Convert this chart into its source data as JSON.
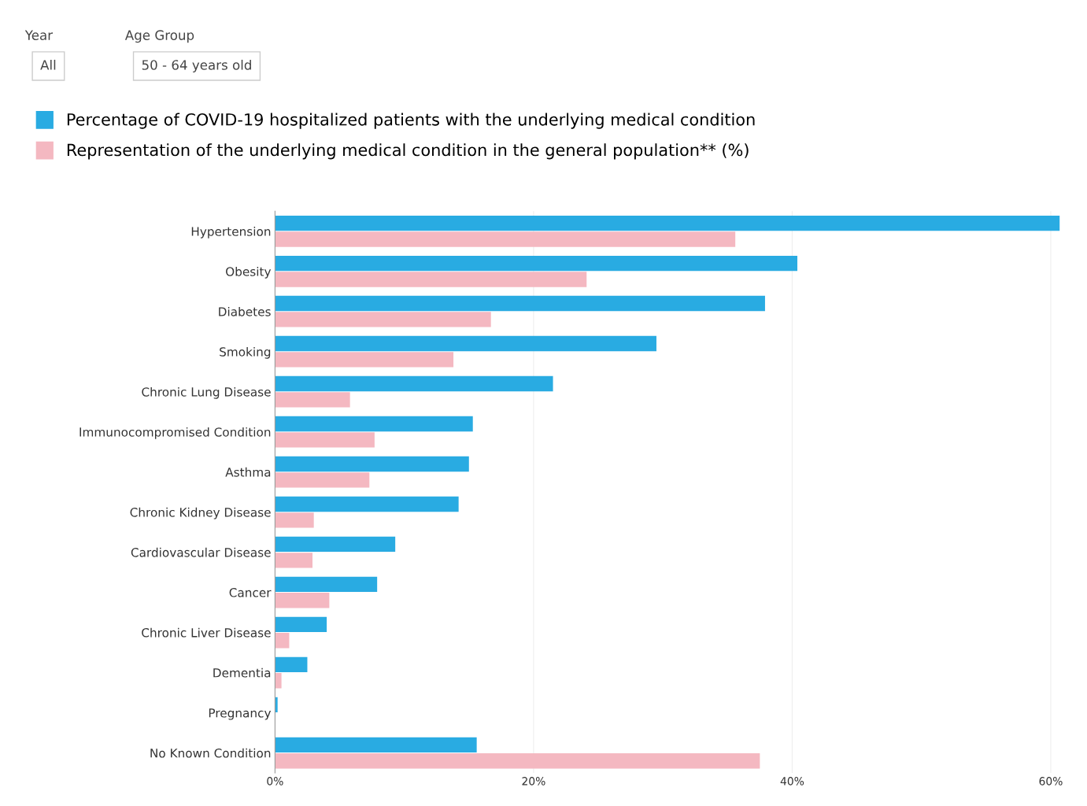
{
  "chart_data": {
    "type": "bar",
    "orientation": "horizontal",
    "categories": [
      "Hypertension",
      "Obesity",
      "Diabetes",
      "Smoking",
      "Chronic Lung Disease",
      "Immunocompromised Condition",
      "Asthma",
      "Chronic Kidney Disease",
      "Cardiovascular Disease",
      "Cancer",
      "Chronic Liver Disease",
      "Dementia",
      "Pregnancy",
      "No Known Condition"
    ],
    "series": [
      {
        "name": "Percentage of COVID-19 hospitalized patients with the underlying medical condition",
        "color": "#29abe2",
        "values": [
          60.7,
          40.4,
          37.9,
          29.5,
          21.5,
          15.3,
          15.0,
          14.2,
          9.3,
          7.9,
          4.0,
          2.5,
          0.2,
          15.6
        ]
      },
      {
        "name": "Representation of the underlying medical condition in the general population** (%)",
        "color": "#f4b8c1",
        "values": [
          35.6,
          24.1,
          16.7,
          13.8,
          5.8,
          7.7,
          7.3,
          3.0,
          2.9,
          4.2,
          1.1,
          0.5,
          null,
          37.5
        ]
      }
    ],
    "xlim": [
      0,
      60.7
    ],
    "xticks": [
      {
        "value": 0,
        "label": "0%"
      },
      {
        "value": 20,
        "label": "20%"
      },
      {
        "value": 40,
        "label": "40%"
      },
      {
        "value": 60,
        "label": "60%"
      }
    ],
    "grid": "x",
    "legend": "top left",
    "annotations": [
      "Year",
      "All",
      "Age Group",
      "50 - 64 years old"
    ]
  }
}
